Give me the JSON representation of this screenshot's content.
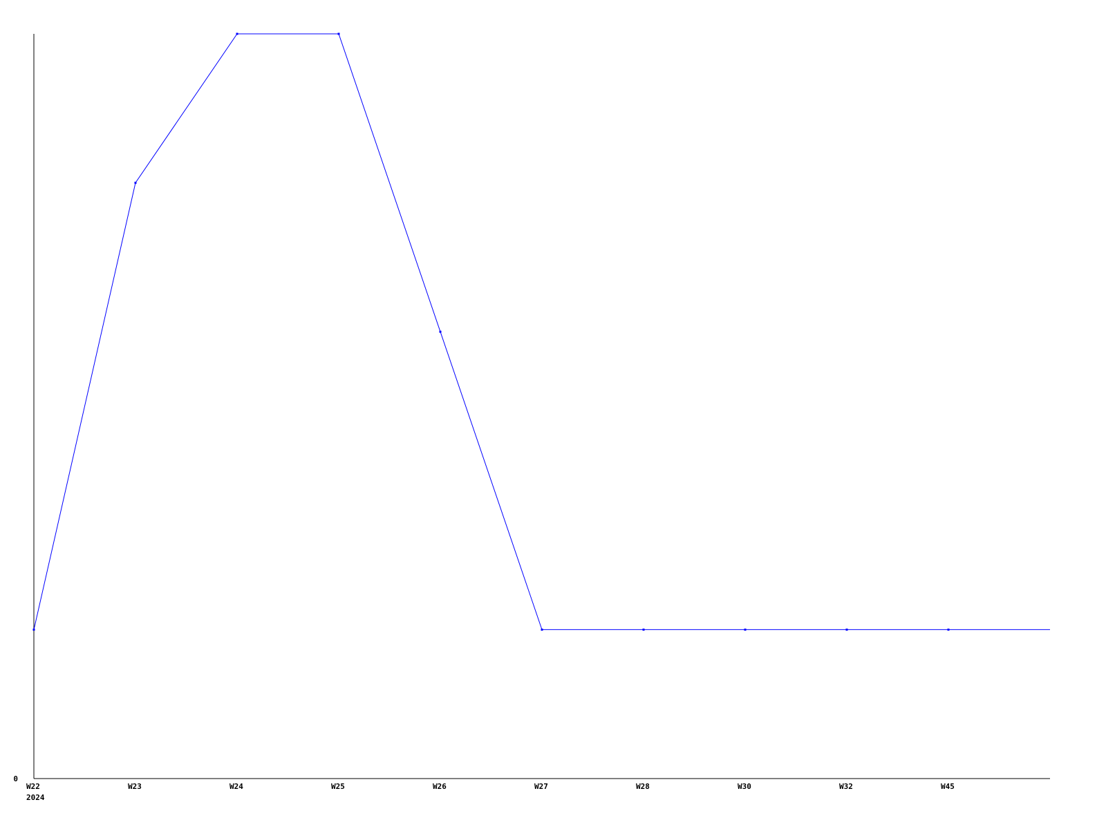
{
  "chart_data": {
    "type": "line",
    "title": "",
    "xlabel": "",
    "ylabel": "",
    "categories": [
      "W22",
      "W23",
      "W24",
      "W25",
      "W26",
      "W27",
      "W28",
      "W30",
      "W32",
      "W45"
    ],
    "x_sublabel": "2024",
    "values": [
      1,
      4,
      5,
      5,
      3,
      1,
      1,
      1,
      1,
      1
    ],
    "ylim": [
      0,
      5
    ],
    "y_tick_labels": [
      "0"
    ],
    "grid": false,
    "legend": "none",
    "line_color": "#0000ff",
    "axis_color": "#000000",
    "line_extends_past_last_point": true
  }
}
